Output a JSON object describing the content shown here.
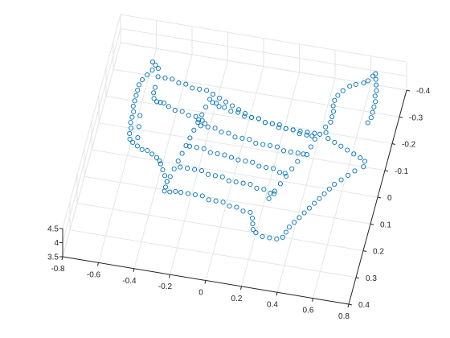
{
  "chart_data": {
    "type": "scatter",
    "view": "3d",
    "title": "",
    "xlabel": "",
    "ylabel": "",
    "zlabel": "",
    "grid": true,
    "colors": {
      "marker": "#0072BD",
      "grid": "#e6e6e6",
      "axis": "#262626"
    },
    "marker": "circle-open",
    "xlim": [
      -0.8,
      0.8
    ],
    "ylim": [
      -0.4,
      0.4
    ],
    "zlim": [
      3.5,
      4.5
    ],
    "x_ticks": [
      "-0.8",
      "-0.6",
      "-0.4",
      "-0.2",
      "0",
      "0.2",
      "0.4",
      "0.6",
      "0.8"
    ],
    "y_ticks": [
      "-0.4",
      "-0.3",
      "-0.2",
      "-0.1",
      "0",
      "0.1",
      "0.2",
      "0.3",
      "0.4"
    ],
    "z_ticks": [
      "3.5",
      "4",
      "4.5"
    ],
    "points": [
      [
        -0.58,
        -0.3
      ],
      [
        -0.56,
        -0.29
      ],
      [
        -0.54,
        -0.28
      ],
      [
        -0.57,
        -0.27
      ],
      [
        -0.59,
        -0.25
      ],
      [
        -0.61,
        -0.23
      ],
      [
        -0.62,
        -0.21
      ],
      [
        -0.62,
        -0.19
      ],
      [
        -0.62,
        -0.17
      ],
      [
        -0.62,
        -0.15
      ],
      [
        -0.62,
        -0.13
      ],
      [
        -0.61,
        -0.11
      ],
      [
        -0.61,
        -0.09
      ],
      [
        -0.61,
        -0.07
      ],
      [
        -0.6,
        -0.05
      ],
      [
        -0.6,
        -0.03
      ],
      [
        -0.59,
        -0.01
      ],
      [
        -0.57,
        0.0
      ],
      [
        -0.54,
        0.01
      ],
      [
        -0.51,
        0.02
      ],
      [
        -0.48,
        0.02
      ],
      [
        -0.45,
        0.03
      ],
      [
        -0.42,
        0.04
      ],
      [
        -0.4,
        0.05
      ],
      [
        -0.39,
        0.06
      ],
      [
        -0.37,
        0.08
      ],
      [
        -0.35,
        0.1
      ],
      [
        -0.33,
        0.12
      ],
      [
        -0.33,
        0.14
      ],
      [
        -0.33,
        0.155
      ],
      [
        -0.3,
        0.155
      ],
      [
        -0.27,
        0.15
      ],
      [
        -0.24,
        0.15
      ],
      [
        -0.2,
        0.15
      ],
      [
        -0.16,
        0.15
      ],
      [
        -0.12,
        0.15
      ],
      [
        -0.08,
        0.16
      ],
      [
        -0.04,
        0.16
      ],
      [
        0.0,
        0.16
      ],
      [
        0.04,
        0.17
      ],
      [
        0.08,
        0.17
      ],
      [
        0.12,
        0.18
      ],
      [
        0.16,
        0.18
      ],
      [
        0.18,
        0.2
      ],
      [
        0.19,
        0.22
      ],
      [
        0.2,
        0.24
      ],
      [
        0.22,
        0.25
      ],
      [
        0.26,
        0.26
      ],
      [
        0.3,
        0.26
      ],
      [
        0.34,
        0.26
      ],
      [
        0.37,
        0.25
      ],
      [
        0.38,
        0.23
      ],
      [
        0.39,
        0.21
      ],
      [
        0.41,
        0.19
      ],
      [
        0.43,
        0.17
      ],
      [
        0.45,
        0.15
      ],
      [
        0.47,
        0.13
      ],
      [
        0.49,
        0.11
      ],
      [
        0.51,
        0.09
      ],
      [
        0.53,
        0.07
      ],
      [
        0.55,
        0.05
      ],
      [
        0.57,
        0.03
      ],
      [
        0.6,
        0.01
      ],
      [
        0.63,
        -0.01
      ],
      [
        0.66,
        -0.03
      ],
      [
        0.7,
        -0.05
      ],
      [
        0.7,
        -0.07
      ],
      [
        0.67,
        -0.08
      ],
      [
        0.63,
        -0.09
      ],
      [
        0.59,
        -0.1
      ],
      [
        0.55,
        -0.11
      ],
      [
        0.51,
        -0.12
      ],
      [
        0.47,
        -0.13
      ],
      [
        0.45,
        -0.15
      ],
      [
        0.44,
        -0.17
      ],
      [
        0.46,
        -0.19
      ],
      [
        0.46,
        -0.21
      ],
      [
        0.46,
        -0.23
      ],
      [
        0.45,
        -0.25
      ],
      [
        0.45,
        -0.27
      ],
      [
        0.46,
        -0.29
      ],
      [
        0.48,
        -0.31
      ],
      [
        0.51,
        -0.33
      ],
      [
        0.54,
        -0.34
      ],
      [
        0.58,
        -0.35
      ],
      [
        0.6,
        -0.36
      ],
      [
        0.62,
        -0.38
      ],
      [
        0.63,
        -0.39
      ],
      [
        0.64,
        -0.37
      ],
      [
        0.65,
        -0.35
      ],
      [
        0.66,
        -0.33
      ],
      [
        0.66,
        -0.31
      ],
      [
        0.67,
        -0.29
      ],
      [
        0.67,
        -0.27
      ],
      [
        0.67,
        -0.25
      ],
      [
        0.67,
        -0.23
      ],
      [
        0.66,
        -0.21
      ],
      [
        -0.53,
        -0.25
      ],
      [
        -0.49,
        -0.25
      ],
      [
        -0.45,
        -0.25
      ],
      [
        -0.41,
        -0.24
      ],
      [
        -0.37,
        -0.24
      ],
      [
        -0.33,
        -0.23
      ],
      [
        -0.29,
        -0.23
      ],
      [
        -0.25,
        -0.23
      ],
      [
        -0.21,
        -0.22
      ],
      [
        -0.17,
        -0.21
      ],
      [
        -0.13,
        -0.2
      ],
      [
        -0.09,
        -0.19
      ],
      [
        -0.05,
        -0.18
      ],
      [
        -0.01,
        -0.17
      ],
      [
        0.03,
        -0.16
      ],
      [
        0.07,
        -0.16
      ],
      [
        0.11,
        -0.15
      ],
      [
        0.15,
        -0.15
      ],
      [
        0.19,
        -0.15
      ],
      [
        0.23,
        -0.14
      ],
      [
        0.27,
        -0.14
      ],
      [
        0.31,
        -0.14
      ],
      [
        0.35,
        -0.14
      ],
      [
        0.39,
        -0.14
      ],
      [
        0.42,
        -0.14
      ],
      [
        -0.53,
        -0.21
      ],
      [
        -0.53,
        -0.19
      ],
      [
        -0.52,
        -0.17
      ],
      [
        -0.5,
        -0.16
      ],
      [
        -0.48,
        -0.16
      ],
      [
        -0.46,
        -0.16
      ],
      [
        -0.43,
        -0.15
      ],
      [
        -0.39,
        -0.14
      ],
      [
        -0.35,
        -0.14
      ],
      [
        -0.31,
        -0.13
      ],
      [
        -0.27,
        -0.13
      ],
      [
        -0.25,
        -0.12
      ],
      [
        -0.23,
        -0.12
      ],
      [
        -0.21,
        -0.11
      ],
      [
        -0.57,
        -0.1
      ],
      [
        -0.56,
        -0.06
      ],
      [
        -0.55,
        -0.02
      ],
      [
        -0.22,
        -0.2
      ],
      [
        -0.23,
        -0.17
      ],
      [
        -0.24,
        -0.14
      ],
      [
        -0.25,
        -0.11
      ],
      [
        -0.26,
        -0.08
      ],
      [
        -0.27,
        -0.05
      ],
      [
        -0.28,
        -0.02
      ],
      [
        -0.29,
        0.01
      ],
      [
        -0.3,
        0.04
      ],
      [
        -0.31,
        0.07
      ],
      [
        -0.32,
        0.1
      ],
      [
        -0.33,
        0.12
      ],
      [
        -0.2,
        -0.19
      ],
      [
        -0.18,
        -0.19
      ],
      [
        -0.16,
        -0.18
      ],
      [
        -0.13,
        -0.18
      ],
      [
        -0.09,
        -0.17
      ],
      [
        -0.05,
        -0.17
      ],
      [
        -0.01,
        -0.16
      ],
      [
        0.03,
        -0.16
      ],
      [
        0.07,
        -0.16
      ],
      [
        0.11,
        -0.15
      ],
      [
        0.15,
        -0.15
      ],
      [
        0.19,
        -0.14
      ],
      [
        0.23,
        -0.14
      ],
      [
        0.27,
        -0.14
      ],
      [
        0.31,
        -0.13
      ],
      [
        0.35,
        -0.13
      ],
      [
        0.38,
        -0.13
      ],
      [
        -0.23,
        -0.1
      ],
      [
        -0.19,
        -0.1
      ],
      [
        -0.15,
        -0.1
      ],
      [
        -0.11,
        -0.09
      ],
      [
        -0.07,
        -0.09
      ],
      [
        -0.03,
        -0.08
      ],
      [
        0.01,
        -0.08
      ],
      [
        0.05,
        -0.08
      ],
      [
        0.09,
        -0.07
      ],
      [
        0.13,
        -0.07
      ],
      [
        0.17,
        -0.07
      ],
      [
        0.21,
        -0.07
      ],
      [
        0.25,
        -0.06
      ],
      [
        0.29,
        -0.06
      ],
      [
        0.33,
        -0.06
      ],
      [
        0.36,
        -0.06
      ],
      [
        -0.26,
        -0.02
      ],
      [
        -0.22,
        -0.02
      ],
      [
        -0.18,
        -0.02
      ],
      [
        -0.14,
        -0.01
      ],
      [
        -0.1,
        -0.01
      ],
      [
        -0.06,
        -0.01
      ],
      [
        -0.02,
        -0.005
      ],
      [
        0.02,
        0.0
      ],
      [
        0.06,
        0.0
      ],
      [
        0.1,
        0.0
      ],
      [
        0.14,
        0.01
      ],
      [
        0.18,
        0.01
      ],
      [
        0.22,
        0.01
      ],
      [
        0.26,
        0.02
      ],
      [
        0.29,
        0.02
      ],
      [
        -0.28,
        0.06
      ],
      [
        -0.24,
        0.06
      ],
      [
        -0.2,
        0.06
      ],
      [
        -0.16,
        0.06
      ],
      [
        -0.12,
        0.07
      ],
      [
        -0.08,
        0.07
      ],
      [
        -0.04,
        0.07
      ],
      [
        0.0,
        0.08
      ],
      [
        0.04,
        0.08
      ],
      [
        0.08,
        0.08
      ],
      [
        0.12,
        0.08
      ],
      [
        0.16,
        0.09
      ],
      [
        0.2,
        0.09
      ],
      [
        0.24,
        0.1
      ],
      [
        0.26,
        0.1
      ],
      [
        0.38,
        -0.06
      ],
      [
        0.39,
        -0.09
      ],
      [
        0.4,
        -0.12
      ],
      [
        0.3,
        0.03
      ],
      [
        0.32,
        0.0
      ],
      [
        0.34,
        -0.03
      ],
      [
        0.24,
        0.12
      ],
      [
        0.26,
        0.09
      ],
      [
        0.28,
        0.06
      ]
    ]
  }
}
